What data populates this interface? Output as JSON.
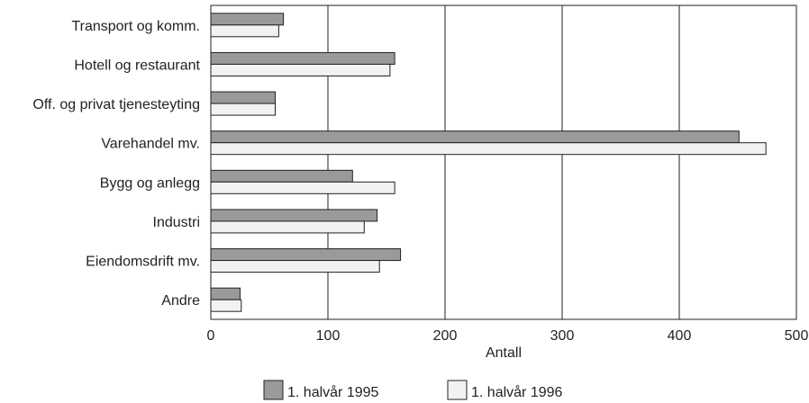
{
  "chart_data": {
    "type": "bar",
    "orientation": "horizontal",
    "categories": [
      "Transport og komm.",
      "Hotell og restaurant",
      "Off. og privat tjenesteyting",
      "Varehandel mv.",
      "Bygg og anlegg",
      "Industri",
      "Eiendomsdrift mv.",
      "Andre"
    ],
    "series": [
      {
        "name": "1. halvår 1995",
        "values": [
          62,
          157,
          55,
          451,
          121,
          142,
          162,
          25
        ],
        "color": "#9a9a9a"
      },
      {
        "name": "1. halvår 1996",
        "values": [
          58,
          153,
          55,
          474,
          157,
          131,
          144,
          26
        ],
        "color": "#f2f2f2"
      }
    ],
    "xlabel": "Antall",
    "ylabel": "",
    "xlim": [
      0,
      500
    ],
    "xticks": [
      0,
      100,
      200,
      300,
      400,
      500
    ],
    "grid": "vertical",
    "legend_position": "bottom"
  }
}
